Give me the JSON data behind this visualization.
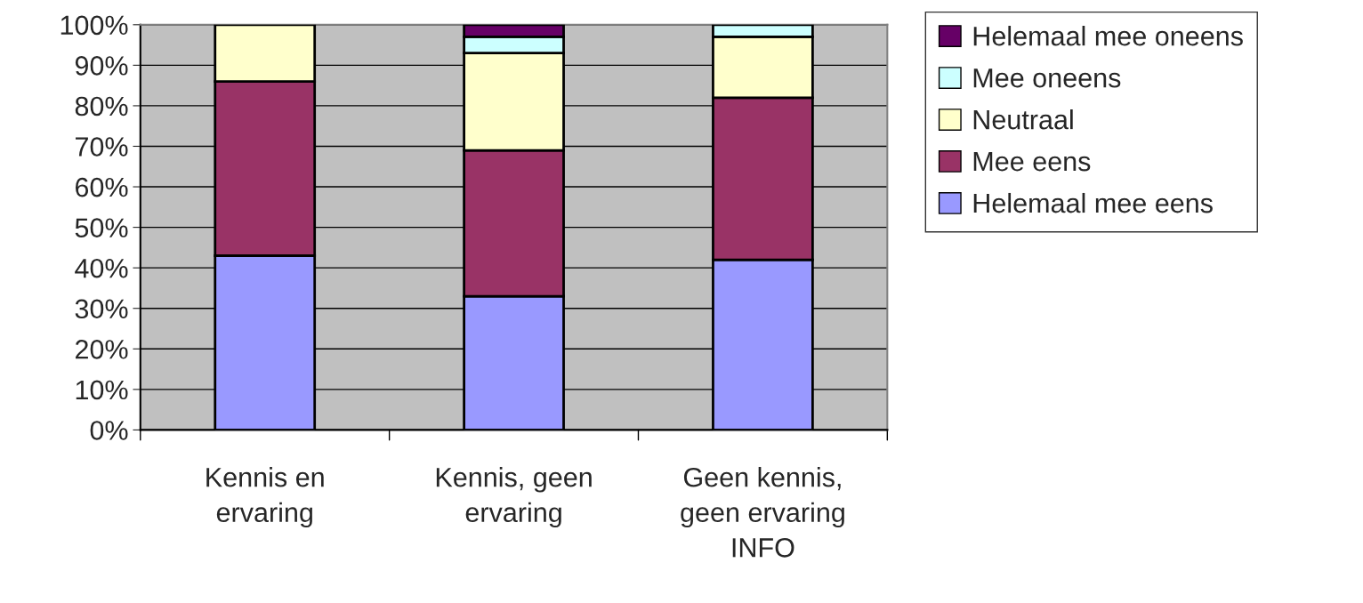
{
  "chart_data": {
    "type": "bar",
    "stacked": true,
    "categories": [
      "Kennis en\nervaring",
      "Kennis, geen\nervaring",
      "Geen kennis,\ngeen ervaring\nINFO"
    ],
    "series": [
      {
        "name": "Helemaal mee eens",
        "color": "#9999ff",
        "values": [
          43,
          33,
          42
        ]
      },
      {
        "name": "Mee eens",
        "color": "#993366",
        "values": [
          43,
          36,
          40
        ]
      },
      {
        "name": "Neutraal",
        "color": "#ffffcc",
        "values": [
          14,
          24,
          15
        ]
      },
      {
        "name": "Mee oneens",
        "color": "#ccffff",
        "values": [
          0,
          4,
          3
        ]
      },
      {
        "name": "Helemaal mee oneens",
        "color": "#660066",
        "values": [
          0,
          3,
          0
        ]
      }
    ],
    "ylim": [
      0,
      100
    ],
    "yticks": [
      {
        "value": 0,
        "label": "0%"
      },
      {
        "value": 10,
        "label": "10%"
      },
      {
        "value": 20,
        "label": "20%"
      },
      {
        "value": 30,
        "label": "30%"
      },
      {
        "value": 40,
        "label": "40%"
      },
      {
        "value": 50,
        "label": "50%"
      },
      {
        "value": 60,
        "label": "60%"
      },
      {
        "value": 70,
        "label": "70%"
      },
      {
        "value": 80,
        "label": "80%"
      },
      {
        "value": 90,
        "label": "90%"
      },
      {
        "value": 100,
        "label": "100%"
      }
    ],
    "grid": "y",
    "legend": "right"
  }
}
